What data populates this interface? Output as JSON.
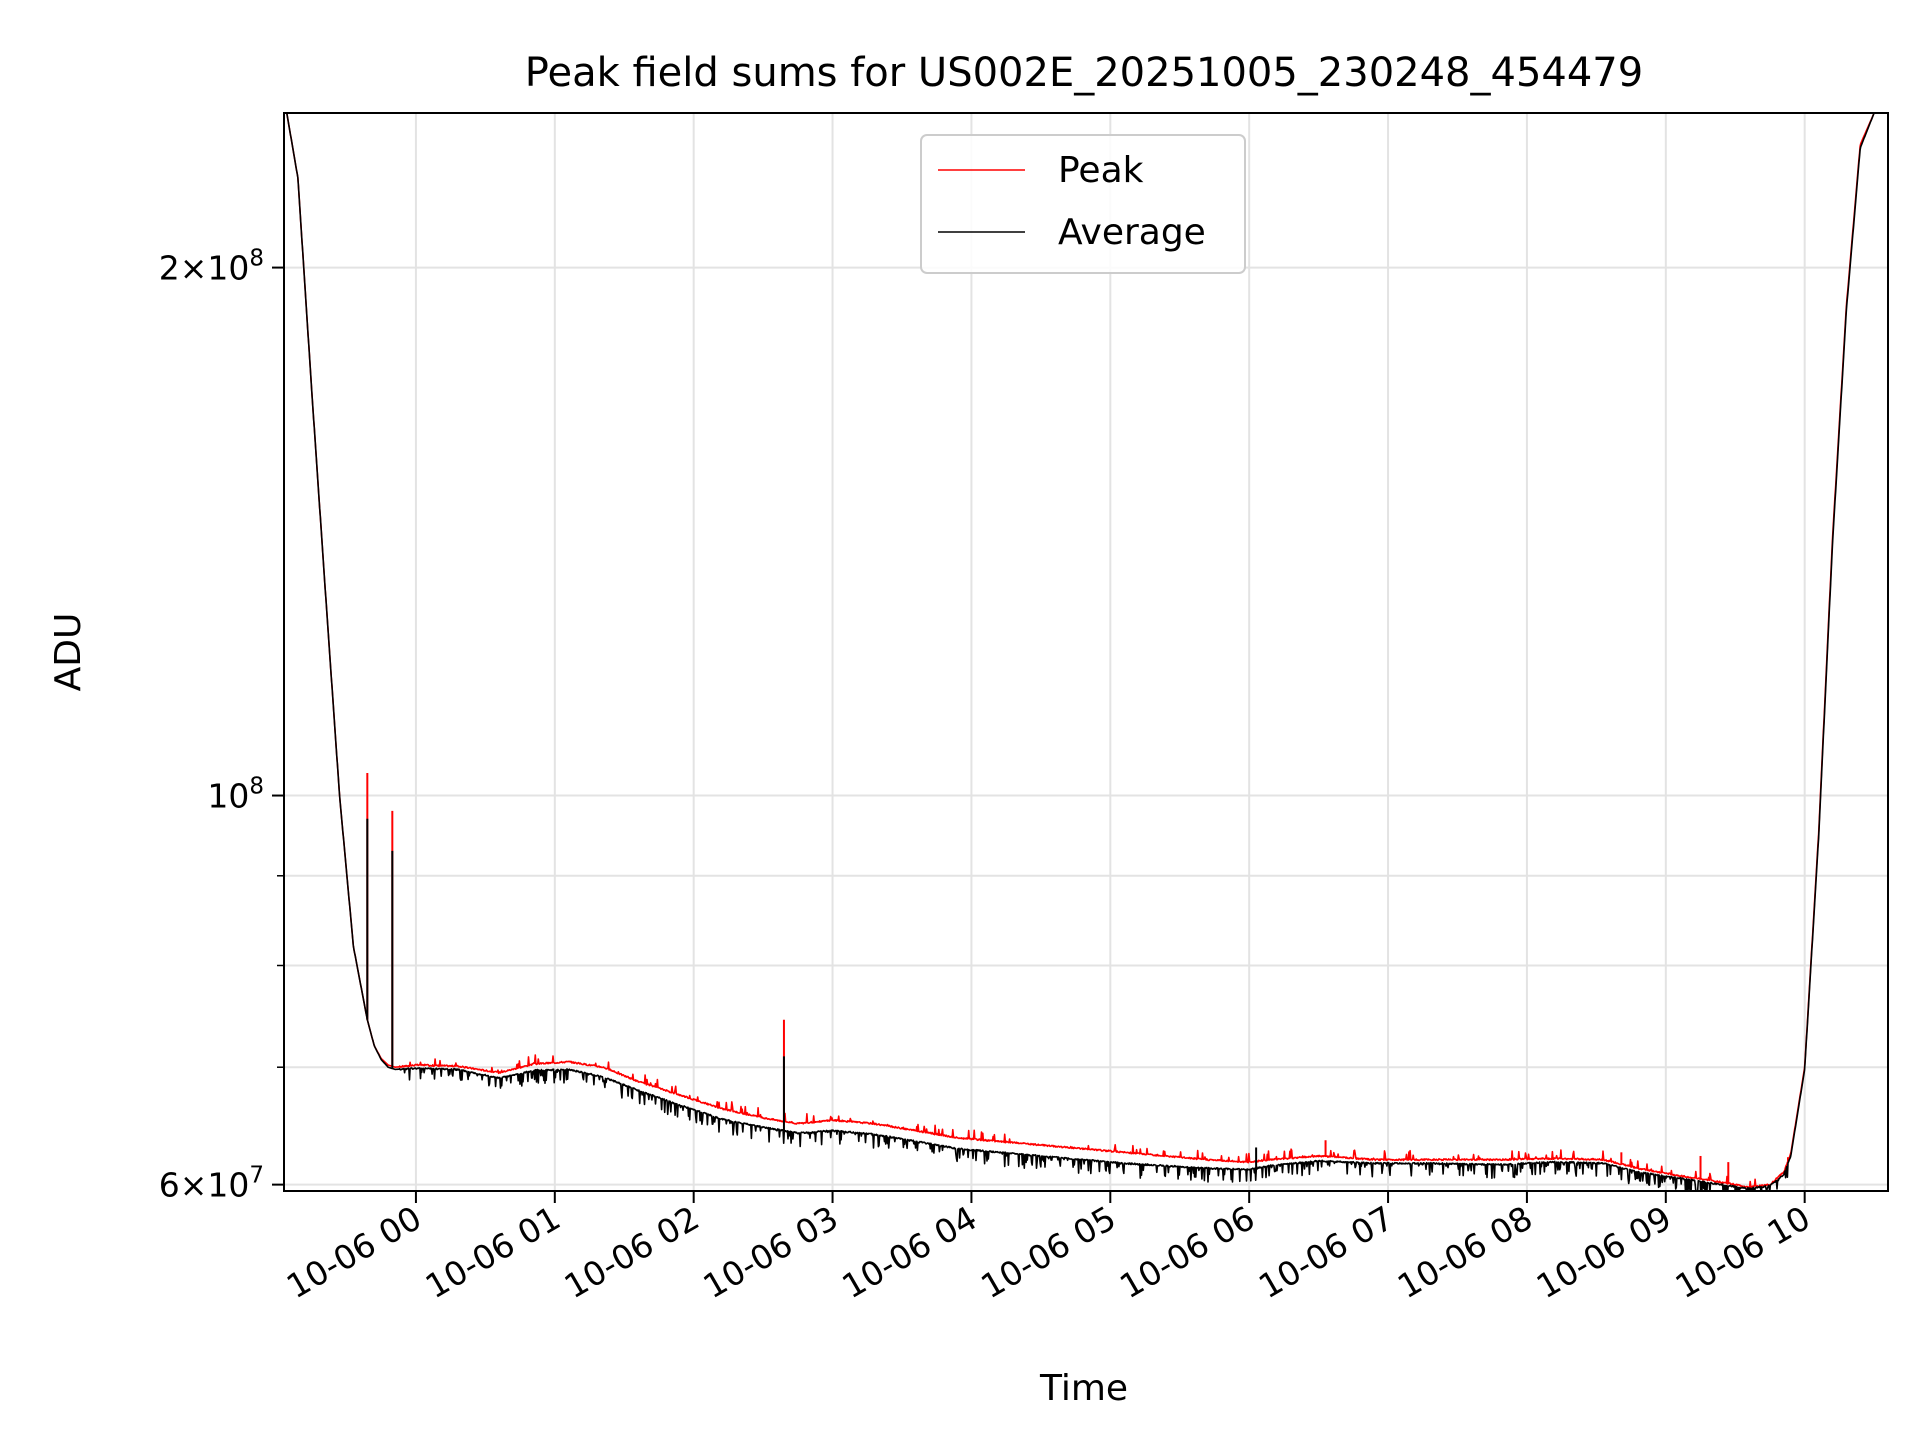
{
  "chart_data": {
    "type": "line",
    "title": "Peak field sums for US002E_20251005_230248_454479",
    "xlabel": "Time",
    "ylabel": "ADU",
    "yscale": "log",
    "ylim": [
      59500000,
      245000000
    ],
    "xlim": [
      -0.95,
      10.6
    ],
    "x_units": "hours after 10-06 00:00",
    "grid": true,
    "legend_position": "upper center",
    "x_ticks": [
      {
        "value": 0,
        "label": "10-06 00"
      },
      {
        "value": 1,
        "label": "10-06 01"
      },
      {
        "value": 2,
        "label": "10-06 02"
      },
      {
        "value": 3,
        "label": "10-06 03"
      },
      {
        "value": 4,
        "label": "10-06 04"
      },
      {
        "value": 5,
        "label": "10-06 05"
      },
      {
        "value": 6,
        "label": "10-06 06"
      },
      {
        "value": 7,
        "label": "10-06 07"
      },
      {
        "value": 8,
        "label": "10-06 08"
      },
      {
        "value": 9,
        "label": "10-06 09"
      },
      {
        "value": 10,
        "label": "10-06 10"
      }
    ],
    "y_major_ticks": [
      {
        "value": 60000000,
        "mantissa": "6",
        "base": "10",
        "exponent": "7"
      },
      {
        "value": 100000000,
        "mantissa": "",
        "base": "10",
        "exponent": "8"
      },
      {
        "value": 200000000,
        "mantissa": "2",
        "base": "10",
        "exponent": "8"
      }
    ],
    "y_minor_ticks": [
      70000000,
      80000000,
      90000000
    ],
    "series": [
      {
        "name": "Peak",
        "color": "#ff0000",
        "x": [
          -0.93,
          -0.85,
          -0.75,
          -0.65,
          -0.55,
          -0.45,
          -0.35,
          -0.3,
          -0.25,
          -0.2,
          -0.15,
          0.0,
          0.3,
          0.6,
          0.85,
          1.1,
          1.35,
          1.6,
          1.9,
          2.2,
          2.5,
          2.75,
          3.0,
          3.3,
          3.6,
          3.9,
          4.2,
          4.5,
          4.8,
          5.1,
          5.4,
          5.7,
          6.0,
          6.15,
          6.5,
          6.9,
          7.3,
          7.8,
          8.2,
          8.55,
          8.8,
          9.1,
          9.4,
          9.6,
          9.75,
          9.85,
          9.9,
          10.0,
          10.1,
          10.2,
          10.3,
          10.4,
          10.5
        ],
        "y": [
          245000000,
          225000000,
          170000000,
          130000000,
          100000000,
          82000000,
          74500000,
          72000000,
          70800000,
          70200000,
          70000000,
          70200000,
          70100000,
          69500000,
          70300000,
          70500000,
          70000000,
          68700000,
          67500000,
          66300000,
          65500000,
          65000000,
          65300000,
          65000000,
          64400000,
          63800000,
          63500000,
          63200000,
          62900000,
          62600000,
          62300000,
          62000000,
          61800000,
          62000000,
          62300000,
          62000000,
          62000000,
          62000000,
          62100000,
          62000000,
          61300000,
          60700000,
          60200000,
          59800000,
          60000000,
          61000000,
          62500000,
          70000000,
          95000000,
          140000000,
          190000000,
          235000000,
          245000000
        ],
        "spikes": [
          {
            "x": -0.35,
            "y": 103000000
          },
          {
            "x": -0.17,
            "y": 98000000
          },
          {
            "x": 2.65,
            "y": 74500000
          },
          {
            "x": 6.55,
            "y": 63600000
          },
          {
            "x": 8.68,
            "y": 62600000
          },
          {
            "x": 9.25,
            "y": 62300000
          },
          {
            "x": 9.45,
            "y": 61800000
          },
          {
            "x": 9.88,
            "y": 62200000
          }
        ]
      },
      {
        "name": "Average",
        "color": "#000000",
        "x": [
          -0.93,
          -0.85,
          -0.75,
          -0.65,
          -0.55,
          -0.45,
          -0.35,
          -0.3,
          -0.25,
          -0.2,
          -0.15,
          0.0,
          0.3,
          0.6,
          0.85,
          1.1,
          1.35,
          1.6,
          1.9,
          2.2,
          2.5,
          2.75,
          3.0,
          3.3,
          3.6,
          3.9,
          4.2,
          4.5,
          4.8,
          5.1,
          5.4,
          5.7,
          6.0,
          6.15,
          6.5,
          6.9,
          7.3,
          7.8,
          8.2,
          8.55,
          8.8,
          9.1,
          9.4,
          9.6,
          9.75,
          9.85,
          9.9,
          10.0,
          10.1,
          10.2,
          10.3,
          10.4,
          10.5
        ],
        "y": [
          245000000,
          225000000,
          170000000,
          130000000,
          100000000,
          82000000,
          74500000,
          72000000,
          70700000,
          70000000,
          69800000,
          69900000,
          69800000,
          69000000,
          69700000,
          69800000,
          69100000,
          67900000,
          66600000,
          65400000,
          64700000,
          64200000,
          64400000,
          64100000,
          63500000,
          62900000,
          62600000,
          62300000,
          62000000,
          61700000,
          61500000,
          61300000,
          61200000,
          61500000,
          61900000,
          61700000,
          61700000,
          61600000,
          61800000,
          61700000,
          61000000,
          60500000,
          60000000,
          59700000,
          59900000,
          60800000,
          62300000,
          69800000,
          94500000,
          139000000,
          189000000,
          234000000,
          245000000
        ],
        "spikes": [
          {
            "x": -0.35,
            "y": 97000000
          },
          {
            "x": -0.17,
            "y": 93000000
          },
          {
            "x": 2.65,
            "y": 71000000
          },
          {
            "x": 6.05,
            "y": 63000000
          }
        ]
      }
    ]
  }
}
